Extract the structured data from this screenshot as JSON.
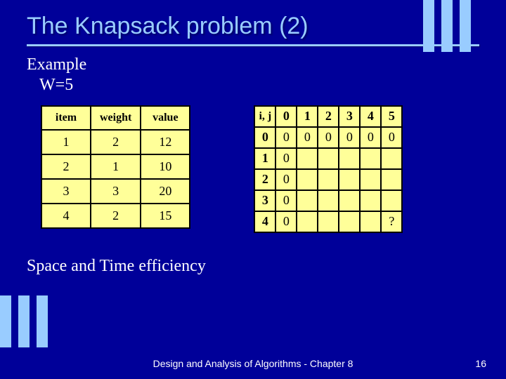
{
  "title": {
    "text": "The Knapsack problem (2)",
    "fontsize": 34
  },
  "example": {
    "label": "Example",
    "capacity_label": "W=5"
  },
  "items_table": {
    "headers": [
      "item",
      "weight",
      "value"
    ],
    "rows": [
      [
        "1",
        "2",
        "12"
      ],
      [
        "2",
        "1",
        "10"
      ],
      [
        "3",
        "3",
        "20"
      ],
      [
        "4",
        "2",
        "15"
      ]
    ]
  },
  "dp_table": {
    "corner": "i, j",
    "col_headers": [
      "0",
      "1",
      "2",
      "3",
      "4",
      "5"
    ],
    "row_headers": [
      "0",
      "1",
      "2",
      "3",
      "4"
    ],
    "cells": [
      [
        "0",
        "0",
        "0",
        "0",
        "0",
        "0"
      ],
      [
        "0",
        "",
        "",
        "",
        "",
        ""
      ],
      [
        "0",
        "",
        "",
        "",
        "",
        ""
      ],
      [
        "0",
        "",
        "",
        "",
        "",
        ""
      ],
      [
        "0",
        "",
        "",
        "",
        "",
        "?"
      ]
    ]
  },
  "bottom_text": "Space and Time efficiency",
  "footer": "Design and Analysis of Algorithms - Chapter 8",
  "page_number": "16",
  "colors": {
    "background": "#000099",
    "accent": "#99ccff",
    "table_bg": "#ffff99",
    "text": "#ffffff",
    "border": "#000000"
  }
}
